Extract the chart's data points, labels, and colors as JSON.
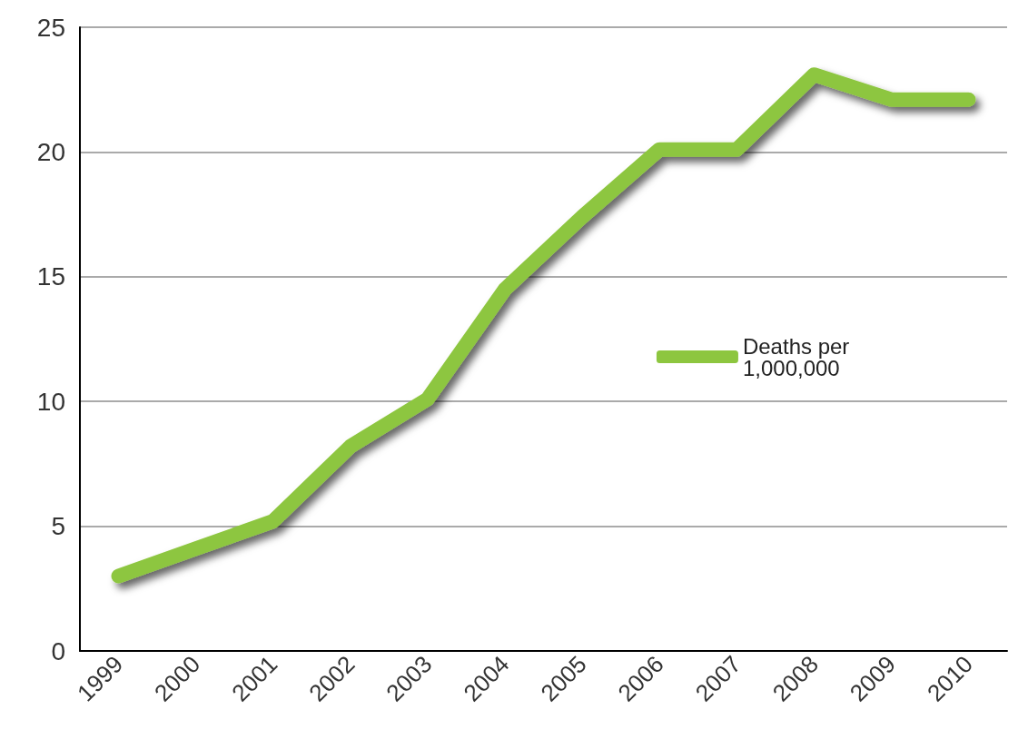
{
  "chart_data": {
    "type": "line",
    "categories": [
      "1999",
      "2000",
      "2001",
      "2002",
      "2003",
      "2004",
      "2005",
      "2006",
      "2007",
      "2008",
      "2009",
      "2010"
    ],
    "series": [
      {
        "name": "Deaths per 1,000,000",
        "color": "#8dc63f",
        "values": [
          3.0,
          4.1,
          5.2,
          8.2,
          10.1,
          14.5,
          17.4,
          20.1,
          20.1,
          23.1,
          22.1,
          22.1
        ]
      }
    ],
    "ylim": [
      0,
      25
    ],
    "yticks": [
      0,
      5,
      10,
      15,
      20,
      25
    ],
    "grid": "y",
    "legend": "right",
    "line_style": "solid"
  }
}
